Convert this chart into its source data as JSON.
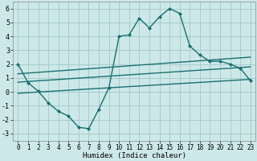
{
  "xlabel": "Humidex (Indice chaleur)",
  "background_color": "#cde8e8",
  "grid_color": "#a8cccc",
  "line_color": "#1a7070",
  "xlim": [
    -0.5,
    23.5
  ],
  "ylim": [
    -3.5,
    6.5
  ],
  "xtick_labels": [
    "0",
    "1",
    "2",
    "3",
    "4",
    "5",
    "6",
    "7",
    "8",
    "9",
    "10",
    "11",
    "12",
    "13",
    "14",
    "15",
    "16",
    "17",
    "18",
    "19",
    "20",
    "21",
    "22",
    "23"
  ],
  "xtick_vals": [
    0,
    1,
    2,
    3,
    4,
    5,
    6,
    7,
    8,
    9,
    10,
    11,
    12,
    13,
    14,
    15,
    16,
    17,
    18,
    19,
    20,
    21,
    22,
    23
  ],
  "ytick_vals": [
    -3,
    -2,
    -1,
    0,
    1,
    2,
    3,
    4,
    5,
    6
  ],
  "ytick_labels": [
    "-3",
    "-2",
    "-1",
    "0",
    "1",
    "2",
    "3",
    "4",
    "5",
    "6"
  ],
  "main_x": [
    0,
    1,
    2,
    3,
    4,
    5,
    6,
    7,
    8,
    9,
    10,
    11,
    12,
    13,
    14,
    15,
    16,
    17,
    18,
    19,
    20,
    21,
    22,
    23
  ],
  "main_y": [
    2.0,
    0.65,
    0.05,
    -0.8,
    -1.4,
    -1.75,
    -2.55,
    -2.65,
    -1.25,
    0.3,
    4.0,
    4.1,
    5.3,
    4.6,
    5.4,
    6.0,
    5.65,
    3.3,
    2.65,
    2.2,
    2.2,
    2.0,
    1.7,
    0.8
  ],
  "line1_x": [
    0,
    23
  ],
  "line1_y": [
    -0.1,
    0.9
  ],
  "line2_x": [
    0,
    23
  ],
  "line2_y": [
    0.7,
    1.8
  ],
  "line3_x": [
    0,
    23
  ],
  "line3_y": [
    1.3,
    2.5
  ]
}
